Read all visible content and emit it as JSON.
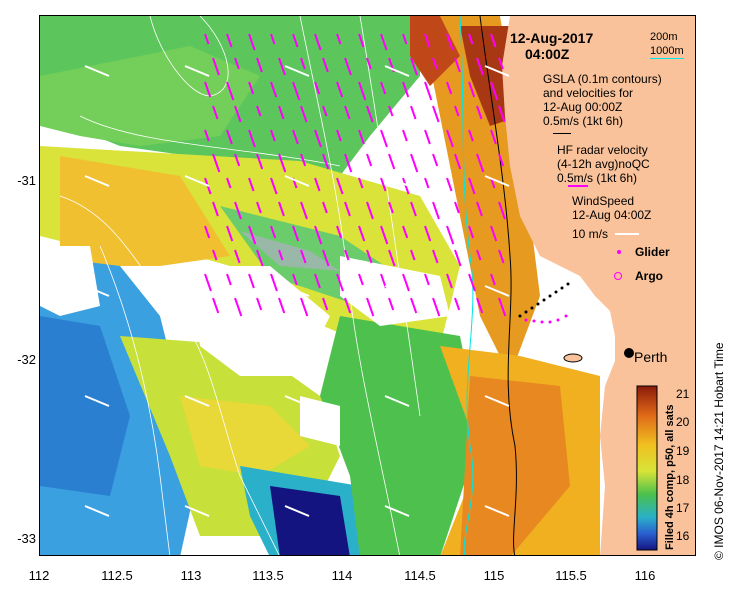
{
  "header": {
    "date": "12-Aug-2017",
    "time": "04:00Z"
  },
  "depth_scale": {
    "contour_200": "200m",
    "contour_1000": "1000m"
  },
  "legend": {
    "gsla_line1": "GSLA (0.1m contours)",
    "gsla_line2": "and velocities for",
    "gsla_line3": "12-Aug 00:00Z",
    "gsla_scale": "0.5m/s (1kt 6h)",
    "hf_line1": "HF radar velocity",
    "hf_line2": "(4-12h avg)noQC",
    "hf_scale": "0.5m/s (1kt 6h)",
    "wind_line1": "WindSpeed",
    "wind_line2": "12-Aug 04:00Z",
    "wind_scale": "10 m/s",
    "glider": "Glider",
    "argo": "Argo"
  },
  "place": {
    "city": "Perth"
  },
  "axes": {
    "x_ticks": [
      "112",
      "112.5",
      "113",
      "113.5",
      "114",
      "114.5",
      "115",
      "115.5",
      "116"
    ],
    "y_ticks": [
      "-31",
      "-32",
      "-33"
    ]
  },
  "colorbar": {
    "title": "Filled 4h comp, p50, all sats",
    "labels": [
      "21",
      "20",
      "19",
      "18",
      "17",
      "16"
    ]
  },
  "credit": "© IMOS 06-Nov-2017 14:21 Hobart Time",
  "colors": {
    "land": "#f9c29a",
    "hf_arrows": "#ff00ff",
    "wind_arrows": "#ffffff",
    "contour_200": "#000000",
    "contour_1000": "#00e5e5"
  }
}
